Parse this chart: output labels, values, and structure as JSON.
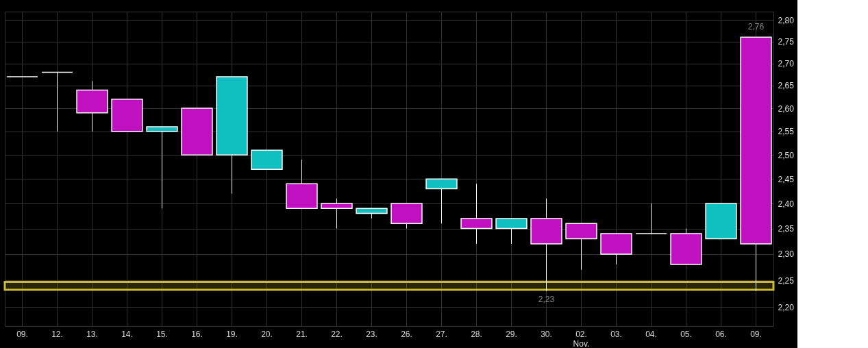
{
  "chart_data": {
    "type": "candlestick",
    "categories": [
      "09.",
      "12.",
      "13.",
      "14.",
      "15.",
      "16.",
      "19.",
      "20.",
      "21.",
      "22.",
      "23.",
      "26.",
      "27.",
      "28.",
      "29.",
      "30.",
      "02.\nNov.",
      "03.",
      "04.",
      "05.",
      "06.",
      "09."
    ],
    "ohlc": [
      [
        2.67,
        2.67,
        2.67,
        2.67
      ],
      [
        2.68,
        2.68,
        2.55,
        2.68
      ],
      [
        2.59,
        2.66,
        2.55,
        2.64
      ],
      [
        2.55,
        2.62,
        2.55,
        2.62
      ],
      [
        2.56,
        2.56,
        2.39,
        2.55
      ],
      [
        2.5,
        2.6,
        2.5,
        2.6
      ],
      [
        2.67,
        2.67,
        2.42,
        2.5
      ],
      [
        2.51,
        2.51,
        2.47,
        2.47
      ],
      [
        2.39,
        2.49,
        2.39,
        2.44
      ],
      [
        2.39,
        2.41,
        2.35,
        2.4
      ],
      [
        2.39,
        2.39,
        2.37,
        2.38
      ],
      [
        2.36,
        2.4,
        2.35,
        2.4
      ],
      [
        2.45,
        2.45,
        2.36,
        2.43
      ],
      [
        2.35,
        2.44,
        2.32,
        2.37
      ],
      [
        2.37,
        2.37,
        2.32,
        2.35
      ],
      [
        2.32,
        2.41,
        2.23,
        2.37
      ],
      [
        2.33,
        2.36,
        2.27,
        2.36
      ],
      [
        2.3,
        2.34,
        2.28,
        2.34
      ],
      [
        2.34,
        2.4,
        2.34,
        2.34
      ],
      [
        2.28,
        2.35,
        2.28,
        2.34
      ],
      [
        2.4,
        2.4,
        2.33,
        2.33
      ],
      [
        2.32,
        2.76,
        2.23,
        2.76
      ]
    ],
    "colors": [
      "#ffffff",
      "#ffffff",
      "#c010c0",
      "#c010c0",
      "#10c0c0",
      "#c010c0",
      "#10c0c0",
      "#10c0c0",
      "#c010c0",
      "#c010c0",
      "#10c0c0",
      "#c010c0",
      "#10c0c0",
      "#c010c0",
      "#10c0c0",
      "#c010c0",
      "#c010c0",
      "#c010c0",
      "#ffffff",
      "#c010c0",
      "#10c0c0",
      "#c010c0"
    ],
    "ylim": [
      2.165,
      2.82
    ],
    "log": true,
    "yticks": [
      {
        "value": 2.2,
        "label": "2,20"
      },
      {
        "value": 2.25,
        "label": "2,25"
      },
      {
        "value": 2.3,
        "label": "2,30"
      },
      {
        "value": 2.35,
        "label": "2,35"
      },
      {
        "value": 2.4,
        "label": "2,40"
      },
      {
        "value": 2.45,
        "label": "2,45"
      },
      {
        "value": 2.5,
        "label": "2,50"
      },
      {
        "value": 2.55,
        "label": "2,55"
      },
      {
        "value": 2.6,
        "label": "2,60"
      },
      {
        "value": 2.65,
        "label": "2,65"
      },
      {
        "value": 2.7,
        "label": "2,70"
      },
      {
        "value": 2.75,
        "label": "2,75"
      },
      {
        "value": 2.8,
        "label": "2,80"
      }
    ],
    "annotations": [
      {
        "text": "2,23",
        "x": "30.",
        "y": 2.23
      },
      "2,76"
    ],
    "bands": [
      {
        "axis": "y",
        "from": 2.232,
        "to": 2.247,
        "color": "#c8b832"
      }
    ],
    "grid": true
  }
}
